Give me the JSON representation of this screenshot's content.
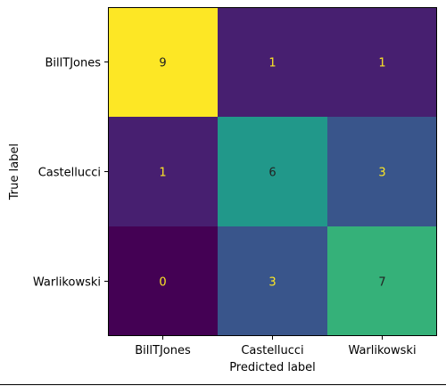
{
  "chart_data": {
    "type": "heatmap",
    "title": "",
    "xlabel": "Predicted label",
    "ylabel": "True label",
    "x_categories": [
      "BillTJones",
      "Castellucci",
      "Warlikowski"
    ],
    "y_categories": [
      "BillTJones",
      "Castellucci",
      "Warlikowski"
    ],
    "values": [
      [
        9,
        1,
        1
      ],
      [
        1,
        6,
        3
      ],
      [
        0,
        3,
        7
      ]
    ],
    "value_range": [
      0,
      9
    ],
    "colormap": "viridis",
    "cell_text_color_light": "#fde725",
    "cell_text_color_dark": "#222222",
    "grid": false,
    "colorbar": false
  }
}
